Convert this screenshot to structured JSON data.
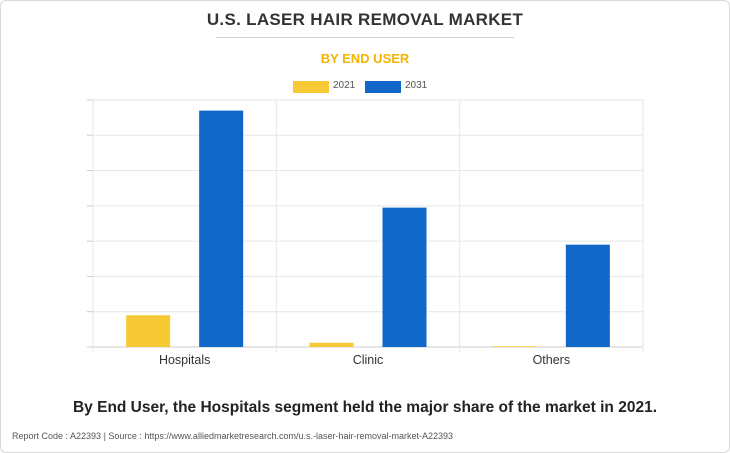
{
  "header": {
    "title": "U.S. LASER HAIR REMOVAL MARKET",
    "subtitle": "BY END USER"
  },
  "colors": {
    "accent": "#f4b400",
    "series_2021": "#f6c935",
    "series_2031": "#1167c7",
    "grid": "#e6e6e6"
  },
  "chart_data": {
    "type": "bar",
    "categories": [
      "Hospitals",
      "Clinic",
      "Others"
    ],
    "series": [
      {
        "name": "2021",
        "values": [
          9.0,
          1.2,
          0.15
        ]
      },
      {
        "name": "2031",
        "values": [
          67.0,
          39.5,
          29.0
        ]
      }
    ],
    "ylim": [
      0,
      70
    ],
    "grid": true,
    "y_tick_labels_shown": false,
    "legend_position": "top-center",
    "xlabel": "",
    "ylabel": ""
  },
  "caption": "By End User, the Hospitals segment held the major share of the market in 2021.",
  "footer": "Report Code : A22393  |  Source : https://www.alliedmarketresearch.com/u.s.-laser-hair-removal-market-A22393"
}
